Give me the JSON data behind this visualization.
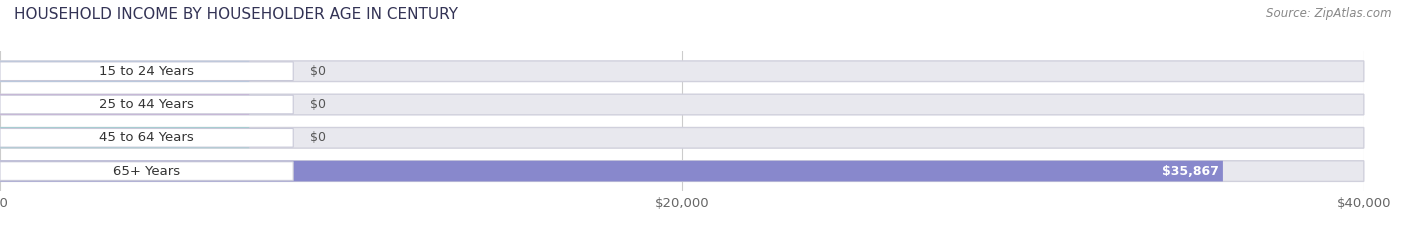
{
  "title": "HOUSEHOLD INCOME BY HOUSEHOLDER AGE IN CENTURY",
  "source": "Source: ZipAtlas.com",
  "categories": [
    "15 to 24 Years",
    "25 to 44 Years",
    "45 to 64 Years",
    "65+ Years"
  ],
  "values": [
    0,
    0,
    0,
    35867
  ],
  "bar_colors": [
    "#a8c4e0",
    "#c4a8d4",
    "#7ecec8",
    "#8888cc"
  ],
  "xlim": [
    0,
    40000
  ],
  "xticks": [
    0,
    20000,
    40000
  ],
  "xticklabels": [
    "$0",
    "$20,000",
    "$40,000"
  ],
  "background_color": "#ffffff",
  "bar_track_color": "#e8e8ee",
  "bar_track_border": "#d0d0dc",
  "title_fontsize": 11,
  "source_fontsize": 8.5,
  "label_fontsize": 9.5,
  "value_fontsize": 9,
  "figsize": [
    14.06,
    2.33
  ],
  "dpi": 100
}
